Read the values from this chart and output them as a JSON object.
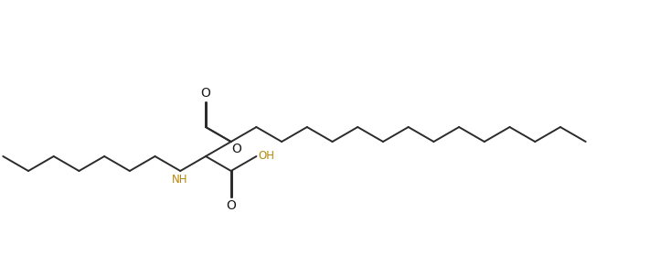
{
  "background_color": "#ffffff",
  "line_color": "#2b2b2b",
  "text_color_black": "#1a1a1a",
  "text_color_nh": "#b8860b",
  "text_color_oh": "#b8860b",
  "line_width": 1.4,
  "figsize": [
    7.34,
    2.91
  ],
  "dpi": 100,
  "xlim": [
    0,
    73.4
  ],
  "ylim": [
    0,
    29.1
  ]
}
